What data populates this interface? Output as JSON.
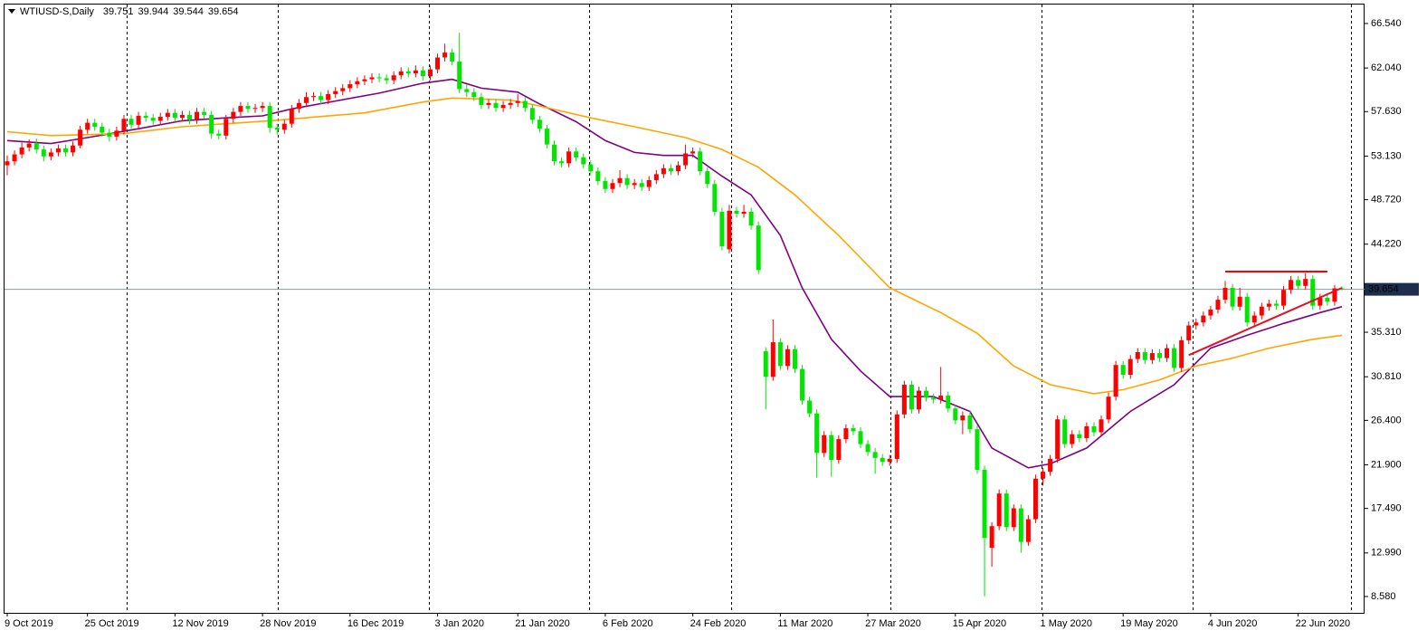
{
  "chart_data": {
    "type": "candlestick",
    "title": "WTIUSD-S,Daily",
    "categories": [
      "9 Oct 2019",
      null,
      null,
      null,
      null,
      null,
      null,
      null,
      null,
      null,
      null,
      "25 Oct 2019",
      null,
      null,
      null,
      null,
      null,
      null,
      null,
      null,
      null,
      null,
      null,
      "12 Nov 2019",
      null,
      null,
      null,
      null,
      null,
      null,
      null,
      null,
      null,
      null,
      null,
      "28 Nov 2019",
      null,
      null,
      null,
      null,
      null,
      null,
      null,
      null,
      null,
      null,
      null,
      "16 Dec 2019",
      null,
      null,
      null,
      null,
      null,
      null,
      null,
      null,
      null,
      null,
      null,
      "3 Jan 2020",
      null,
      null,
      null,
      null,
      null,
      null,
      null,
      null,
      null,
      null,
      "21 Jan 2020",
      null,
      null,
      null,
      null,
      null,
      null,
      null,
      null,
      null,
      null,
      null,
      "6 Feb 2020",
      null,
      null,
      null,
      null,
      null,
      null,
      null,
      null,
      null,
      null,
      null,
      "24 Feb 2020",
      null,
      null,
      null,
      null,
      null,
      null,
      null,
      null,
      null,
      null,
      null,
      "11 Mar 2020",
      null,
      null,
      null,
      null,
      null,
      null,
      null,
      null,
      null,
      null,
      null,
      "27 Mar 2020",
      null,
      null,
      null,
      null,
      null,
      null,
      null,
      null,
      null,
      null,
      null,
      "15 Apr 2020",
      null,
      null,
      null,
      null,
      null,
      null,
      null,
      null,
      null,
      null,
      null,
      "1 May 2020",
      null,
      null,
      null,
      null,
      null,
      null,
      null,
      null,
      null,
      null,
      "19 May 2020",
      null,
      null,
      null,
      null,
      null,
      null,
      null,
      null,
      null,
      null,
      null,
      "4 Jun 2020",
      null,
      null,
      null,
      null,
      null,
      null,
      null,
      null,
      null,
      null,
      null,
      "22 Jun 2020",
      null,
      null,
      null,
      null,
      null,
      null
    ],
    "open": [
      52.2,
      52.6,
      53.3,
      54.0,
      54.4,
      53.8,
      53.1,
      53.5,
      53.9,
      53.5,
      54.2,
      55.8,
      56.5,
      56.1,
      55.5,
      55.1,
      55.7,
      56.9,
      56.3,
      57.2,
      57.0,
      56.7,
      57.1,
      57.5,
      57.0,
      57.3,
      56.8,
      57.6,
      57.3,
      55.4,
      55.2,
      56.9,
      57.6,
      58.2,
      57.9,
      58.0,
      58.2,
      56.0,
      55.8,
      56.4,
      57.9,
      58.5,
      59.1,
      59.2,
      58.8,
      59.4,
      59.7,
      60.0,
      60.4,
      60.7,
      60.9,
      61.1,
      61.0,
      60.8,
      61.3,
      61.7,
      61.5,
      61.8,
      61.2,
      61.9,
      63.1,
      63.6,
      62.7,
      59.9,
      59.6,
      59.1,
      58.3,
      58.5,
      58.0,
      58.3,
      58.5,
      58.7,
      58.0,
      56.8,
      55.9,
      54.3,
      52.6,
      52.4,
      53.6,
      53.0,
      52.3,
      51.6,
      50.6,
      49.8,
      50.4,
      50.9,
      50.2,
      50.4,
      50.0,
      50.7,
      51.3,
      51.9,
      51.6,
      52.2,
      53.4,
      53.6,
      51.6,
      50.3,
      47.5,
      43.7,
      47.6,
      47.3,
      47.5,
      46.1,
      33.4,
      30.8,
      34.3,
      31.9,
      33.6,
      31.6,
      28.4,
      27.1,
      23.1,
      24.9,
      22.4,
      24.5,
      25.6,
      25.3,
      24.0,
      23.2,
      22.6,
      22.2,
      22.5,
      27.0,
      30.0,
      27.5,
      29.4,
      28.7,
      28.5,
      28.9,
      27.6,
      26.4,
      26.9,
      25.5,
      21.4,
      13.5,
      15.7,
      19.0,
      15.6,
      17.5,
      14.1,
      16.4,
      20.5,
      21.2,
      22.5,
      26.5,
      24.0,
      25.0,
      24.6,
      25.8,
      25.2,
      26.5,
      28.8,
      32.0,
      31.0,
      32.6,
      33.3,
      32.5,
      33.2,
      32.7,
      33.7,
      31.7,
      34.5,
      36.0,
      36.3,
      37.0,
      37.6,
      38.6,
      39.8,
      37.9,
      38.9,
      36.3,
      37.0,
      37.9,
      38.2,
      38.0,
      39.6,
      40.6,
      40.0,
      40.7,
      38.0,
      38.8,
      38.4,
      39.751
    ],
    "high": [
      53.2,
      53.7,
      54.5,
      54.8,
      54.9,
      54.2,
      53.9,
      54.3,
      54.3,
      54.6,
      56.2,
      56.9,
      56.9,
      56.5,
      55.9,
      56.1,
      57.3,
      57.3,
      57.6,
      57.6,
      57.4,
      57.5,
      57.9,
      57.9,
      57.7,
      57.7,
      58.0,
      58.0,
      57.7,
      55.8,
      57.3,
      58.0,
      58.6,
      58.6,
      58.4,
      58.6,
      58.6,
      56.4,
      56.8,
      58.3,
      58.9,
      59.6,
      59.6,
      59.6,
      59.8,
      60.1,
      60.4,
      60.8,
      61.1,
      61.3,
      61.5,
      61.5,
      61.4,
      61.7,
      62.1,
      62.1,
      62.3,
      62.2,
      62.3,
      63.5,
      64.5,
      64.0,
      65.6,
      60.4,
      60.0,
      59.5,
      58.9,
      58.9,
      58.7,
      58.9,
      59.4,
      59.1,
      58.4,
      57.2,
      56.3,
      54.7,
      53.0,
      54.0,
      54.0,
      53.4,
      52.7,
      52.0,
      51.0,
      50.8,
      51.7,
      51.3,
      50.8,
      50.8,
      51.1,
      51.7,
      52.3,
      52.3,
      52.6,
      54.3,
      54.0,
      54.0,
      52.0,
      50.7,
      47.9,
      48.2,
      48.0,
      48.2,
      47.9,
      46.5,
      33.8,
      36.6,
      34.7,
      34.0,
      34.0,
      32.0,
      28.8,
      27.5,
      25.3,
      25.3,
      24.9,
      26.0,
      26.0,
      25.7,
      24.4,
      23.6,
      23.0,
      22.9,
      27.4,
      30.4,
      30.4,
      29.8,
      29.8,
      29.1,
      31.8,
      29.3,
      28.0,
      27.3,
      27.3,
      25.9,
      21.8,
      16.1,
      19.4,
      19.4,
      17.9,
      17.9,
      16.8,
      20.9,
      21.6,
      22.9,
      26.9,
      26.9,
      25.4,
      25.4,
      26.2,
      26.2,
      26.9,
      29.2,
      32.4,
      32.4,
      33.0,
      33.7,
      33.7,
      33.6,
      33.6,
      34.1,
      34.1,
      34.9,
      36.4,
      36.7,
      37.4,
      38.0,
      39.0,
      40.5,
      40.2,
      39.8,
      39.3,
      37.4,
      38.3,
      38.6,
      38.6,
      40.0,
      41.0,
      41.0,
      41.3,
      41.1,
      39.2,
      39.2,
      40.1,
      39.944
    ],
    "low": [
      51.2,
      52.2,
      52.9,
      53.6,
      53.4,
      52.6,
      52.7,
      53.1,
      53.1,
      53.1,
      53.9,
      55.4,
      55.7,
      55.1,
      54.6,
      54.7,
      55.3,
      55.9,
      55.9,
      56.6,
      56.3,
      56.3,
      56.7,
      56.6,
      56.6,
      56.4,
      56.4,
      56.9,
      54.9,
      54.8,
      54.8,
      56.5,
      57.2,
      57.5,
      57.5,
      57.6,
      55.5,
      55.3,
      55.4,
      56.0,
      57.5,
      58.1,
      58.7,
      58.4,
      58.4,
      59.0,
      59.3,
      59.6,
      60.0,
      60.3,
      60.5,
      60.6,
      60.4,
      60.4,
      60.9,
      61.1,
      61.1,
      60.8,
      60.8,
      61.5,
      62.7,
      62.3,
      59.5,
      59.1,
      58.7,
      57.9,
      57.9,
      57.6,
      57.6,
      57.9,
      58.1,
      57.6,
      56.4,
      55.5,
      53.9,
      52.2,
      52.0,
      52.0,
      52.6,
      51.9,
      51.2,
      50.2,
      49.4,
      49.4,
      50.0,
      49.8,
      49.8,
      49.6,
      49.6,
      50.3,
      50.9,
      51.2,
      51.2,
      51.8,
      53.0,
      51.2,
      49.9,
      47.1,
      43.6,
      43.3,
      46.9,
      46.9,
      45.7,
      41.2,
      27.5,
      30.4,
      31.5,
      31.5,
      31.2,
      28.0,
      26.7,
      20.6,
      22.7,
      20.7,
      22.0,
      24.1,
      24.9,
      23.6,
      22.8,
      21.0,
      21.8,
      21.8,
      22.1,
      26.6,
      27.1,
      27.1,
      28.3,
      28.1,
      28.1,
      27.2,
      26.0,
      25.0,
      25.1,
      21.0,
      8.6,
      11.6,
      15.3,
      15.2,
      15.2,
      13.0,
      13.7,
      16.0,
      19.8,
      20.8,
      22.1,
      23.6,
      23.6,
      24.2,
      24.2,
      24.8,
      24.8,
      26.1,
      28.4,
      30.6,
      30.6,
      32.2,
      32.1,
      32.1,
      32.3,
      32.3,
      31.3,
      31.3,
      34.1,
      35.6,
      35.9,
      36.6,
      37.2,
      38.2,
      37.5,
      37.5,
      35.9,
      35.9,
      36.6,
      37.5,
      37.6,
      37.6,
      39.2,
      39.6,
      39.6,
      37.6,
      37.6,
      38.0,
      38.0,
      39.544
    ],
    "close": [
      52.6,
      53.3,
      54.0,
      54.4,
      53.8,
      53.1,
      53.5,
      53.9,
      53.5,
      54.2,
      55.8,
      56.5,
      56.1,
      55.5,
      55.1,
      55.7,
      56.9,
      56.3,
      57.2,
      57.0,
      56.7,
      57.1,
      57.5,
      57.0,
      57.3,
      56.8,
      57.6,
      57.3,
      55.4,
      55.2,
      56.9,
      57.6,
      58.2,
      57.9,
      58.0,
      58.2,
      56.0,
      55.8,
      56.4,
      57.9,
      58.5,
      59.1,
      59.2,
      58.8,
      59.4,
      59.7,
      60.0,
      60.4,
      60.7,
      60.9,
      61.1,
      61.0,
      60.8,
      61.3,
      61.7,
      61.5,
      61.8,
      61.2,
      61.9,
      63.1,
      63.6,
      62.7,
      59.9,
      59.6,
      59.1,
      58.3,
      58.5,
      58.0,
      58.3,
      58.5,
      58.7,
      58.0,
      56.8,
      55.9,
      54.3,
      52.6,
      52.4,
      53.6,
      53.0,
      52.3,
      51.6,
      50.6,
      49.8,
      50.4,
      50.9,
      50.2,
      50.4,
      50.0,
      50.7,
      51.3,
      51.9,
      51.6,
      52.2,
      53.4,
      53.6,
      51.6,
      50.3,
      47.5,
      44.0,
      47.6,
      47.3,
      47.5,
      46.1,
      41.6,
      30.8,
      34.3,
      31.9,
      33.6,
      31.6,
      28.4,
      27.1,
      23.1,
      24.9,
      22.4,
      24.5,
      25.6,
      25.3,
      24.0,
      23.2,
      22.6,
      22.2,
      22.5,
      27.0,
      30.0,
      27.5,
      29.4,
      28.7,
      28.5,
      28.9,
      27.6,
      26.4,
      26.9,
      25.5,
      21.4,
      14.5,
      15.7,
      19.0,
      15.6,
      17.5,
      14.1,
      16.4,
      20.5,
      21.2,
      22.5,
      26.5,
      24.0,
      25.0,
      24.6,
      25.8,
      25.2,
      26.5,
      28.8,
      32.0,
      31.0,
      32.6,
      33.3,
      32.5,
      33.2,
      32.7,
      33.7,
      31.7,
      34.5,
      36.0,
      36.3,
      37.0,
      37.6,
      38.6,
      39.8,
      37.9,
      38.9,
      36.3,
      37.0,
      37.9,
      38.2,
      38.0,
      39.6,
      40.6,
      40.0,
      40.7,
      38.0,
      38.8,
      38.4,
      39.75,
      39.654
    ],
    "bull_color": "#ff0000",
    "bear_color": "#00e600",
    "moving_averages": [
      {
        "color": "#800080",
        "x": [
          0,
          6,
          11,
          18,
          24,
          30,
          35,
          39,
          45,
          51,
          57,
          61,
          65,
          70,
          73,
          78,
          82,
          86,
          90,
          94,
          98,
          102,
          106,
          109,
          113,
          117,
          121,
          127,
          132,
          135,
          140,
          143,
          148,
          154,
          160,
          165,
          170,
          175,
          180,
          183
        ],
        "values": [
          54.7,
          54.4,
          55.0,
          55.9,
          56.7,
          57.0,
          57.2,
          57.9,
          58.7,
          59.5,
          60.5,
          60.9,
          60.0,
          59.6,
          58.4,
          56.6,
          54.7,
          53.5,
          53.2,
          53.2,
          51.1,
          49.2,
          45.1,
          39.8,
          34.6,
          31.4,
          28.8,
          28.8,
          27.3,
          23.6,
          21.6,
          22.0,
          23.6,
          27.3,
          30.0,
          33.7,
          35.0,
          36.2,
          37.3,
          37.9
        ]
      },
      {
        "color": "#ffa500",
        "x": [
          0,
          6,
          16,
          24,
          36,
          49,
          57,
          61,
          69,
          73,
          80,
          86,
          93,
          98,
          103,
          108,
          114,
          121,
          128,
          133,
          138,
          143,
          149,
          153,
          158,
          163,
          168,
          173,
          179,
          183
        ],
        "values": [
          55.6,
          55.2,
          55.4,
          56.1,
          56.7,
          57.5,
          58.6,
          59.0,
          58.8,
          58.2,
          57.0,
          56.1,
          55.0,
          53.8,
          52.0,
          49.2,
          45.1,
          39.8,
          37.3,
          35.2,
          31.9,
          30.0,
          29.1,
          29.5,
          30.5,
          31.9,
          32.7,
          33.7,
          34.6,
          35.0
        ]
      }
    ],
    "trend_lines": [
      {
        "color": "#ff0000",
        "x": [
          167,
          181
        ],
        "values": [
          41.45,
          41.45
        ]
      },
      {
        "color": "#e0102a",
        "x": [
          162,
          183
        ],
        "values": [
          33.0,
          39.8
        ]
      }
    ],
    "price_line_color": "#8a9aa8",
    "ylim": [
      6.93,
      68.46
    ],
    "yticks": [
      {
        "value": 66.54,
        "label": "66.540"
      },
      {
        "value": 62.04,
        "label": "62.040"
      },
      {
        "value": 57.63,
        "label": "57.630"
      },
      {
        "value": 53.13,
        "label": "53.130"
      },
      {
        "value": 48.72,
        "label": "48.720"
      },
      {
        "value": 44.22,
        "label": "44.220"
      },
      {
        "value": 35.31,
        "label": "35.310"
      },
      {
        "value": 30.81,
        "label": "30.810"
      },
      {
        "value": 26.4,
        "label": "26.400"
      },
      {
        "value": 21.9,
        "label": "21.900"
      },
      {
        "value": 17.49,
        "label": "17.490"
      },
      {
        "value": 12.99,
        "label": "12.990"
      },
      {
        "value": 8.58,
        "label": "8.580"
      }
    ]
  }
}
